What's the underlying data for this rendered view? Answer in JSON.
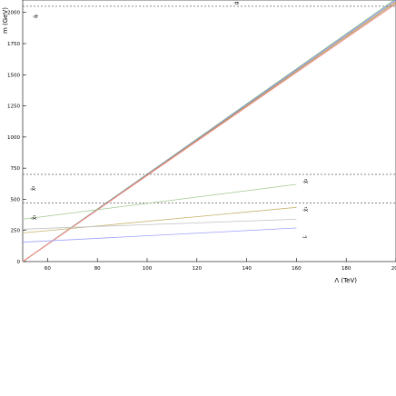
{
  "chart_data": {
    "type": "line",
    "title": "",
    "xlabel": "Λ (TeV)",
    "ylabel": "m (GeV)",
    "xlim": [
      50,
      200
    ],
    "ylim": [
      0,
      2100
    ],
    "xticks": [
      60,
      80,
      100,
      120,
      140,
      160,
      180,
      200
    ],
    "yticks": [
      0,
      250,
      500,
      750,
      1000,
      1250,
      1500,
      1750,
      2000
    ],
    "grid": false,
    "series": [
      {
        "name": "",
        "color": "#7fbf7f",
        "style": "solid",
        "x": [
          50,
          200
        ],
        "y": [
          0,
          2110
        ]
      },
      {
        "name": "",
        "color": "#8080ff",
        "style": "solid",
        "x": [
          50,
          200
        ],
        "y": [
          0,
          2100
        ]
      },
      {
        "name": "",
        "color": "#c8a060",
        "style": "solid",
        "x": [
          50,
          200
        ],
        "y": [
          0,
          2090
        ]
      },
      {
        "name": "",
        "color": "#a0a060",
        "style": "solid",
        "x": [
          50,
          200
        ],
        "y": [
          0,
          2080
        ]
      },
      {
        "name": "",
        "color": "#ff8080",
        "style": "solid",
        "x": [
          50,
          200
        ],
        "y": [
          0,
          2070
        ]
      },
      {
        "name": "",
        "color": "#606060",
        "style": "dashed",
        "x": [
          50,
          200
        ],
        "y": [
          2050,
          2050
        ]
      },
      {
        "name": "",
        "color": "#606060",
        "style": "dashed",
        "x": [
          50,
          200
        ],
        "y": [
          700,
          700
        ]
      },
      {
        "name": "",
        "color": "#606060",
        "style": "dashed",
        "x": [
          50,
          200
        ],
        "y": [
          470,
          470
        ]
      },
      {
        "name": "",
        "color": "#a0c890",
        "style": "solid",
        "x": [
          50,
          160
        ],
        "y": [
          340,
          620
        ]
      },
      {
        "name": "",
        "color": "#c8b46e",
        "style": "solid",
        "x": [
          50,
          160
        ],
        "y": [
          230,
          435
        ]
      },
      {
        "name": "",
        "color": "#a0a0ff",
        "style": "solid",
        "x": [
          50,
          160
        ],
        "y": [
          155,
          270
        ]
      },
      {
        "name": "",
        "color": "#c0c0c0",
        "style": "solid",
        "x": [
          50,
          160
        ],
        "y": [
          260,
          340
        ]
      }
    ]
  }
}
